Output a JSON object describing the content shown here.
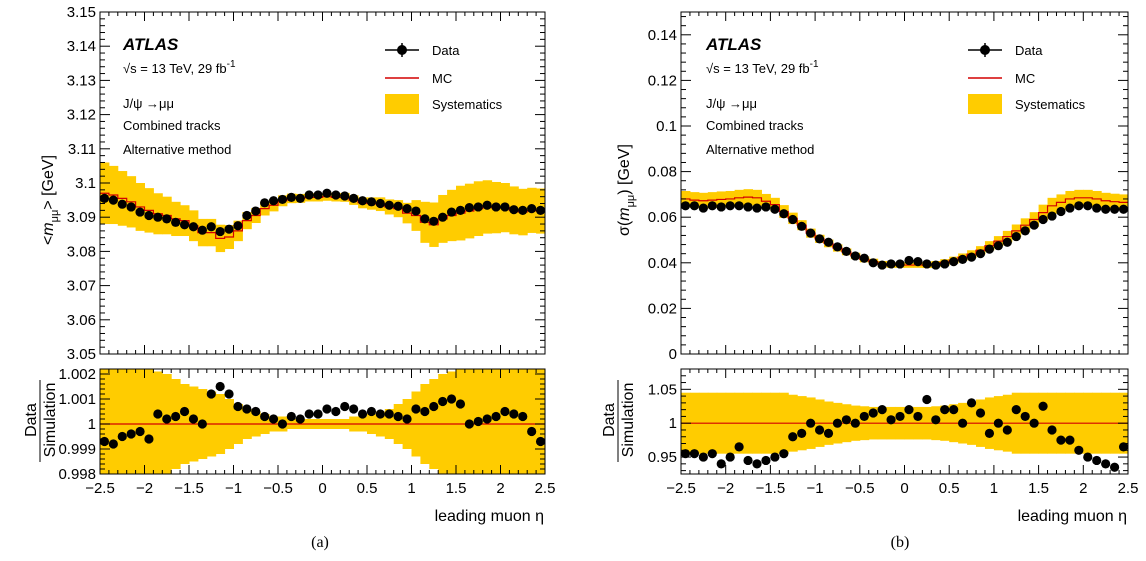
{
  "panels": [
    {
      "sub_label": "(a)",
      "atlas": "ATLAS",
      "energy": "√s = 13 TeV, 29 fb",
      "energy_sup": "-1",
      "process": "J/ψ →μμ",
      "tracks": "Combined tracks",
      "method": "Alternative method",
      "legend": [
        "Data",
        "MC",
        "Systematics"
      ],
      "ylabel": "<m_μμ> [GeV]",
      "ratio_ylabel_top": "Data",
      "ratio_ylabel_bottom": "Simulation",
      "xlabel": "leading muon η"
    },
    {
      "sub_label": "(b)",
      "atlas": "ATLAS",
      "energy": "√s = 13 TeV, 29 fb",
      "energy_sup": "-1",
      "process": "J/ψ →μμ",
      "tracks": "Combined tracks",
      "method": "Alternative method",
      "legend": [
        "Data",
        "MC",
        "Systematics"
      ],
      "ylabel": "σ(m_μμ) [GeV]",
      "ratio_ylabel_top": "Data",
      "ratio_ylabel_bottom": "Simulation",
      "xlabel": "leading muon η"
    }
  ],
  "colors": {
    "data": "#000000",
    "mc": "#d40000",
    "systematics": "#ffcc00"
  },
  "chart_data": [
    {
      "type": "line",
      "xlim": [
        -2.5,
        2.5
      ],
      "ylim": [
        3.05,
        3.15
      ],
      "xticks": [
        "-2.5",
        "-2",
        "-1.5",
        "-1",
        "-0.5",
        "0",
        "0.5",
        "1",
        "1.5",
        "2",
        "2.5"
      ],
      "yticks": [
        "3.05",
        "3.06",
        "3.07",
        "3.08",
        "3.09",
        "3.1",
        "3.11",
        "3.12",
        "3.13",
        "3.14",
        "3.15"
      ],
      "x": [
        -2.45,
        -2.35,
        -2.25,
        -2.15,
        -2.05,
        -1.95,
        -1.85,
        -1.75,
        -1.65,
        -1.55,
        -1.45,
        -1.35,
        -1.25,
        -1.15,
        -1.05,
        -0.95,
        -0.85,
        -0.75,
        -0.65,
        -0.55,
        -0.45,
        -0.35,
        -0.25,
        -0.15,
        -0.05,
        0.05,
        0.15,
        0.25,
        0.35,
        0.45,
        0.55,
        0.65,
        0.75,
        0.85,
        0.95,
        1.05,
        1.15,
        1.25,
        1.35,
        1.45,
        1.55,
        1.65,
        1.75,
        1.85,
        1.95,
        2.05,
        2.15,
        2.25,
        2.35,
        2.45
      ],
      "data": [
        3.0955,
        3.095,
        3.0938,
        3.093,
        3.0915,
        3.0905,
        3.09,
        3.0895,
        3.0885,
        3.0878,
        3.0872,
        3.0862,
        3.0872,
        3.0858,
        3.0865,
        3.0875,
        3.0905,
        3.0918,
        3.0942,
        3.0948,
        3.0952,
        3.0958,
        3.0955,
        3.0965,
        3.0965,
        3.097,
        3.0965,
        3.0962,
        3.0955,
        3.0948,
        3.0945,
        3.094,
        3.0935,
        3.0932,
        3.0925,
        3.0918,
        3.0895,
        3.0888,
        3.09,
        3.0915,
        3.092,
        3.0928,
        3.093,
        3.0935,
        3.093,
        3.093,
        3.0922,
        3.092,
        3.0925,
        3.092
      ],
      "mc": [
        3.097,
        3.0965,
        3.0955,
        3.0945,
        3.093,
        3.092,
        3.091,
        3.0905,
        3.0895,
        3.089,
        3.0875,
        3.0855,
        3.0855,
        3.0838,
        3.0842,
        3.086,
        3.089,
        3.0905,
        3.0925,
        3.0935,
        3.0948,
        3.0955,
        3.0955,
        3.0958,
        3.0958,
        3.096,
        3.0958,
        3.0958,
        3.095,
        3.0942,
        3.094,
        3.0938,
        3.093,
        3.0925,
        3.0912,
        3.0905,
        3.0885,
        3.0878,
        3.0895,
        3.0905,
        3.0912,
        3.0918,
        3.0925,
        3.093,
        3.0928,
        3.0928,
        3.092,
        3.0915,
        3.092,
        3.0918
      ],
      "syst": [
        0.009,
        0.0085,
        0.008,
        0.0075,
        0.007,
        0.0065,
        0.006,
        0.0055,
        0.005,
        0.0045,
        0.0045,
        0.004,
        0.004,
        0.004,
        0.0035,
        0.003,
        0.0025,
        0.0022,
        0.002,
        0.0018,
        0.0016,
        0.0014,
        0.0013,
        0.0012,
        0.0012,
        0.0012,
        0.0012,
        0.0013,
        0.0014,
        0.0016,
        0.0018,
        0.002,
        0.0022,
        0.0025,
        0.003,
        0.0045,
        0.006,
        0.0065,
        0.007,
        0.0075,
        0.008,
        0.008,
        0.008,
        0.0078,
        0.0075,
        0.0072,
        0.007,
        0.0068,
        0.0066,
        0.0066
      ],
      "ratio": {
        "ylim": [
          0.998,
          1.0022
        ],
        "yticks": [
          "0.998",
          "0.999",
          "1",
          "1.001",
          "1.002"
        ],
        "data": [
          0.9993,
          0.9992,
          0.9995,
          0.9996,
          0.9997,
          0.9994,
          1.0004,
          1.0002,
          1.0003,
          1.0005,
          1.0002,
          1.0,
          1.0012,
          1.0015,
          1.0012,
          1.0007,
          1.0006,
          1.0005,
          1.0003,
          1.0002,
          1.0,
          1.0003,
          1.0002,
          1.0004,
          1.0004,
          1.0006,
          1.0005,
          1.0007,
          1.0006,
          1.0004,
          1.0005,
          1.0004,
          1.0004,
          1.0003,
          1.0002,
          1.0006,
          1.0005,
          1.0007,
          1.0009,
          1.001,
          1.0008,
          1.0,
          1.0001,
          1.0002,
          1.0003,
          1.0005,
          1.0004,
          1.0003,
          0.9997,
          0.9993
        ],
        "syst": [
          0.0025,
          0.0025,
          0.0024,
          0.0024,
          0.0023,
          0.0022,
          0.0021,
          0.002,
          0.0018,
          0.0016,
          0.0015,
          0.0014,
          0.0013,
          0.0012,
          0.001,
          0.0008,
          0.0006,
          0.0005,
          0.0004,
          0.0003,
          0.0003,
          0.0002,
          0.0002,
          0.0002,
          0.0002,
          0.0002,
          0.0002,
          0.0002,
          0.0003,
          0.0003,
          0.0004,
          0.0005,
          0.0006,
          0.0008,
          0.001,
          0.0013,
          0.0016,
          0.0018,
          0.002,
          0.0021,
          0.0022,
          0.0023,
          0.0023,
          0.0024,
          0.0024,
          0.0025,
          0.0025,
          0.0025,
          0.0025,
          0.0025
        ]
      }
    },
    {
      "type": "line",
      "xlim": [
        -2.5,
        2.5
      ],
      "ylim": [
        0,
        0.15
      ],
      "xticks": [
        "-2.5",
        "-2",
        "-1.5",
        "-1",
        "-0.5",
        "0",
        "0.5",
        "1",
        "1.5",
        "2",
        "2.5"
      ],
      "yticks": [
        "0",
        "0.02",
        "0.04",
        "0.06",
        "0.08",
        "0.1",
        "0.12",
        "0.14"
      ],
      "x": [
        -2.45,
        -2.35,
        -2.25,
        -2.15,
        -2.05,
        -1.95,
        -1.85,
        -1.75,
        -1.65,
        -1.55,
        -1.45,
        -1.35,
        -1.25,
        -1.15,
        -1.05,
        -0.95,
        -0.85,
        -0.75,
        -0.65,
        -0.55,
        -0.45,
        -0.35,
        -0.25,
        -0.15,
        -0.05,
        0.05,
        0.15,
        0.25,
        0.35,
        0.45,
        0.55,
        0.65,
        0.75,
        0.85,
        0.95,
        1.05,
        1.15,
        1.25,
        1.35,
        1.45,
        1.55,
        1.65,
        1.75,
        1.85,
        1.95,
        2.05,
        2.15,
        2.25,
        2.35,
        2.45
      ],
      "data": [
        0.065,
        0.065,
        0.064,
        0.065,
        0.0645,
        0.065,
        0.065,
        0.0645,
        0.064,
        0.0645,
        0.0635,
        0.0615,
        0.059,
        0.056,
        0.053,
        0.0505,
        0.049,
        0.047,
        0.045,
        0.043,
        0.042,
        0.04,
        0.039,
        0.0395,
        0.0395,
        0.041,
        0.0405,
        0.0395,
        0.039,
        0.0395,
        0.0405,
        0.0415,
        0.0425,
        0.044,
        0.046,
        0.0475,
        0.049,
        0.0515,
        0.054,
        0.0565,
        0.059,
        0.0605,
        0.0625,
        0.064,
        0.065,
        0.065,
        0.064,
        0.0635,
        0.0635,
        0.0635
      ],
      "mc": [
        0.068,
        0.0675,
        0.0672,
        0.0675,
        0.0678,
        0.068,
        0.0685,
        0.0688,
        0.0685,
        0.067,
        0.0655,
        0.0625,
        0.0595,
        0.0565,
        0.053,
        0.0505,
        0.0485,
        0.0465,
        0.0448,
        0.043,
        0.0415,
        0.0405,
        0.0395,
        0.039,
        0.039,
        0.039,
        0.039,
        0.039,
        0.0395,
        0.0402,
        0.0412,
        0.0425,
        0.0438,
        0.0455,
        0.0475,
        0.0495,
        0.0515,
        0.054,
        0.0565,
        0.059,
        0.062,
        0.065,
        0.0665,
        0.068,
        0.0685,
        0.0685,
        0.068,
        0.0672,
        0.0668,
        0.0665
      ],
      "syst": [
        0.0035,
        0.0035,
        0.0035,
        0.0035,
        0.0035,
        0.0035,
        0.0035,
        0.0035,
        0.0035,
        0.0032,
        0.003,
        0.0028,
        0.0025,
        0.0022,
        0.002,
        0.0018,
        0.0017,
        0.0016,
        0.0015,
        0.0014,
        0.0013,
        0.0013,
        0.0013,
        0.0012,
        0.0012,
        0.0012,
        0.0012,
        0.0013,
        0.0013,
        0.0014,
        0.0015,
        0.0016,
        0.0017,
        0.0018,
        0.002,
        0.0022,
        0.0025,
        0.0028,
        0.003,
        0.0032,
        0.0035,
        0.0035,
        0.0035,
        0.0035,
        0.0035,
        0.0035,
        0.0035,
        0.0035,
        0.0035,
        0.0035
      ],
      "ratio": {
        "ylim": [
          0.925,
          1.08
        ],
        "yticks": [
          "0.95",
          "1",
          "1.05"
        ],
        "data": [
          0.955,
          0.955,
          0.95,
          0.955,
          0.94,
          0.95,
          0.965,
          0.945,
          0.94,
          0.945,
          0.95,
          0.955,
          0.98,
          0.985,
          1.0,
          0.99,
          0.985,
          1.0,
          1.005,
          1.0,
          1.01,
          1.015,
          1.02,
          1.005,
          1.01,
          1.02,
          1.01,
          1.035,
          1.005,
          1.02,
          1.02,
          1.0,
          1.03,
          1.015,
          0.985,
          1.0,
          0.99,
          1.02,
          1.01,
          1.0,
          1.025,
          0.99,
          0.975,
          0.975,
          0.96,
          0.95,
          0.945,
          0.94,
          0.935,
          0.965
        ],
        "syst": [
          0.045,
          0.045,
          0.045,
          0.045,
          0.045,
          0.045,
          0.045,
          0.045,
          0.045,
          0.045,
          0.045,
          0.045,
          0.042,
          0.04,
          0.038,
          0.035,
          0.032,
          0.03,
          0.028,
          0.026,
          0.025,
          0.024,
          0.024,
          0.024,
          0.024,
          0.024,
          0.024,
          0.024,
          0.025,
          0.026,
          0.028,
          0.03,
          0.032,
          0.035,
          0.038,
          0.04,
          0.042,
          0.045,
          0.045,
          0.045,
          0.045,
          0.045,
          0.045,
          0.045,
          0.045,
          0.045,
          0.045,
          0.045,
          0.045,
          0.045
        ]
      }
    }
  ]
}
